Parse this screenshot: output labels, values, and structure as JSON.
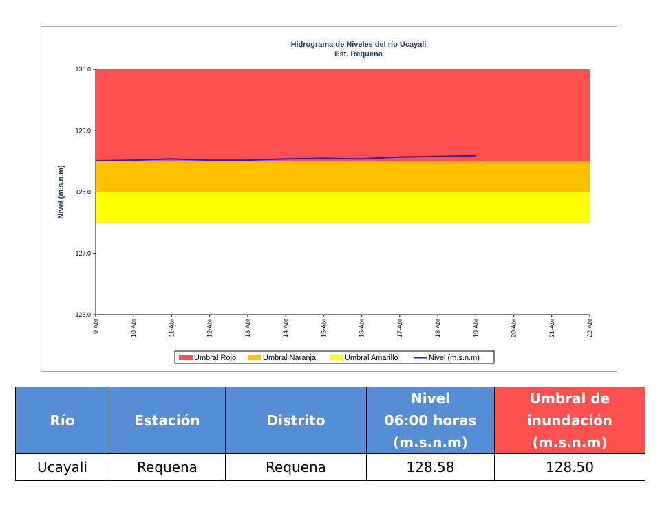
{
  "colors": {
    "rojo": "#ff5050",
    "naranja": "#ffc000",
    "amarillo": "#ffff00",
    "nivel": "#1f1fcf",
    "title": "#1f3864",
    "header_blue": "#558ed5",
    "header_red": "#ff5050"
  },
  "chart_data": {
    "type": "line",
    "title": "Hidrograma de Niveles del río Ucayali",
    "subtitle": "Est. Requena",
    "ylabel": "Nivel (m.s.n.m)",
    "xlabel": "",
    "ylim": [
      126.0,
      130.0
    ],
    "y_ticks": [
      "126.0",
      "127.0",
      "128.0",
      "129.0",
      "130.0"
    ],
    "x_ticks": [
      "9-Abr",
      "10-Abr",
      "11-Abr",
      "12-Abr",
      "13-Abr",
      "14-Abr",
      "15-Abr",
      "16-Abr",
      "17-Abr",
      "18-Abr",
      "19-Abr",
      "20-Abr",
      "21-Abr",
      "22-Abr"
    ],
    "bands": [
      {
        "name": "Umbral Rojo",
        "from": 128.5,
        "to": 130.0,
        "color": "#ff5050"
      },
      {
        "name": "Umbral Naranja",
        "from": 128.0,
        "to": 128.5,
        "color": "#ffc000"
      },
      {
        "name": "Umbral Amarillo",
        "from": 127.5,
        "to": 128.0,
        "color": "#ffff00"
      }
    ],
    "series": [
      {
        "name": "Nivel (m.s.n.m)",
        "x": [
          "9-Abr",
          "10-Abr",
          "11-Abr",
          "12-Abr",
          "13-Abr",
          "14-Abr",
          "15-Abr",
          "16-Abr",
          "17-Abr",
          "18-Abr",
          "19-Abr"
        ],
        "values": [
          128.51,
          128.52,
          128.54,
          128.52,
          128.52,
          128.54,
          128.55,
          128.54,
          128.57,
          128.58,
          128.59
        ]
      }
    ],
    "legend": [
      "Umbral Rojo",
      "Umbral Naranja",
      "Umbral Amarillo",
      "Nivel (m.s.n.m)"
    ],
    "legend_position": "bottom",
    "grid": false
  },
  "table": {
    "headers": {
      "rio": "Río",
      "estacion": "Estación",
      "distrito": "Distrito",
      "nivel_1": "Nivel",
      "nivel_2": "06:00 horas",
      "nivel_3": "(m.s.n.m)",
      "umbral_1": "Umbral de",
      "umbral_2": "inundación",
      "umbral_3": "(m.s.n.m)"
    },
    "row": {
      "rio": "Ucayali",
      "estacion": "Requena",
      "distrito": "Requena",
      "nivel": "128.58",
      "umbral": "128.50"
    }
  }
}
